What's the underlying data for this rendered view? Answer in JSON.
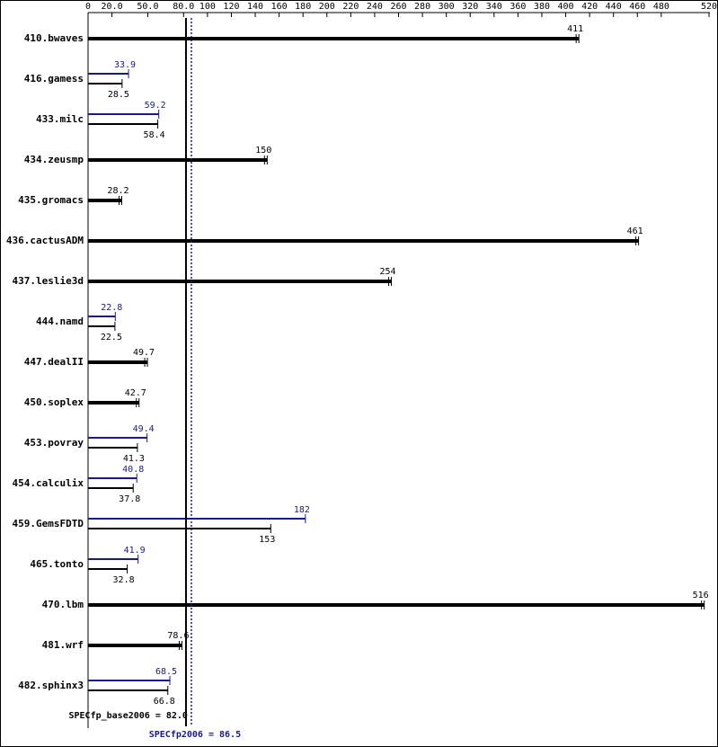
{
  "chart_data": {
    "type": "bar",
    "orientation": "horizontal",
    "categories": [
      "410.bwaves",
      "416.gamess",
      "433.milc",
      "434.zeusmp",
      "435.gromacs",
      "436.cactusADM",
      "437.leslie3d",
      "444.namd",
      "447.dealII",
      "450.soplex",
      "453.povray",
      "454.calculix",
      "459.GemsFDTD",
      "465.tonto",
      "470.lbm",
      "481.wrf",
      "482.sphinx3"
    ],
    "series": [
      {
        "color": "#000000",
        "values": [
          411,
          28.5,
          58.4,
          150,
          28.2,
          461,
          254,
          22.5,
          49.7,
          42.7,
          41.3,
          37.8,
          153,
          32.8,
          516,
          78.6,
          66.8
        ]
      },
      {
        "color": "#1a1a8c",
        "values": [
          null,
          33.9,
          59.2,
          null,
          null,
          null,
          null,
          22.8,
          null,
          null,
          49.4,
          40.8,
          182,
          41.9,
          null,
          null,
          68.5
        ]
      }
    ],
    "xlim": [
      0,
      520
    ],
    "xticks": [
      0,
      {
        "value": 20,
        "label": "20.0"
      },
      {
        "value": 50,
        "label": "50.0"
      },
      {
        "value": 80,
        "label": "80.0"
      },
      100,
      120,
      140,
      160,
      180,
      200,
      220,
      240,
      260,
      280,
      300,
      320,
      340,
      360,
      380,
      400,
      420,
      440,
      460,
      480,
      520
    ],
    "reference_lines": [
      {
        "value": 82.0,
        "label": "SPECfp_base2006 = 82.0",
        "color": "#000000",
        "style": "solid"
      },
      {
        "value": 86.5,
        "label": "SPECfp2006 = 86.5",
        "color": "#1a1a8c",
        "style": "dotted"
      }
    ]
  }
}
